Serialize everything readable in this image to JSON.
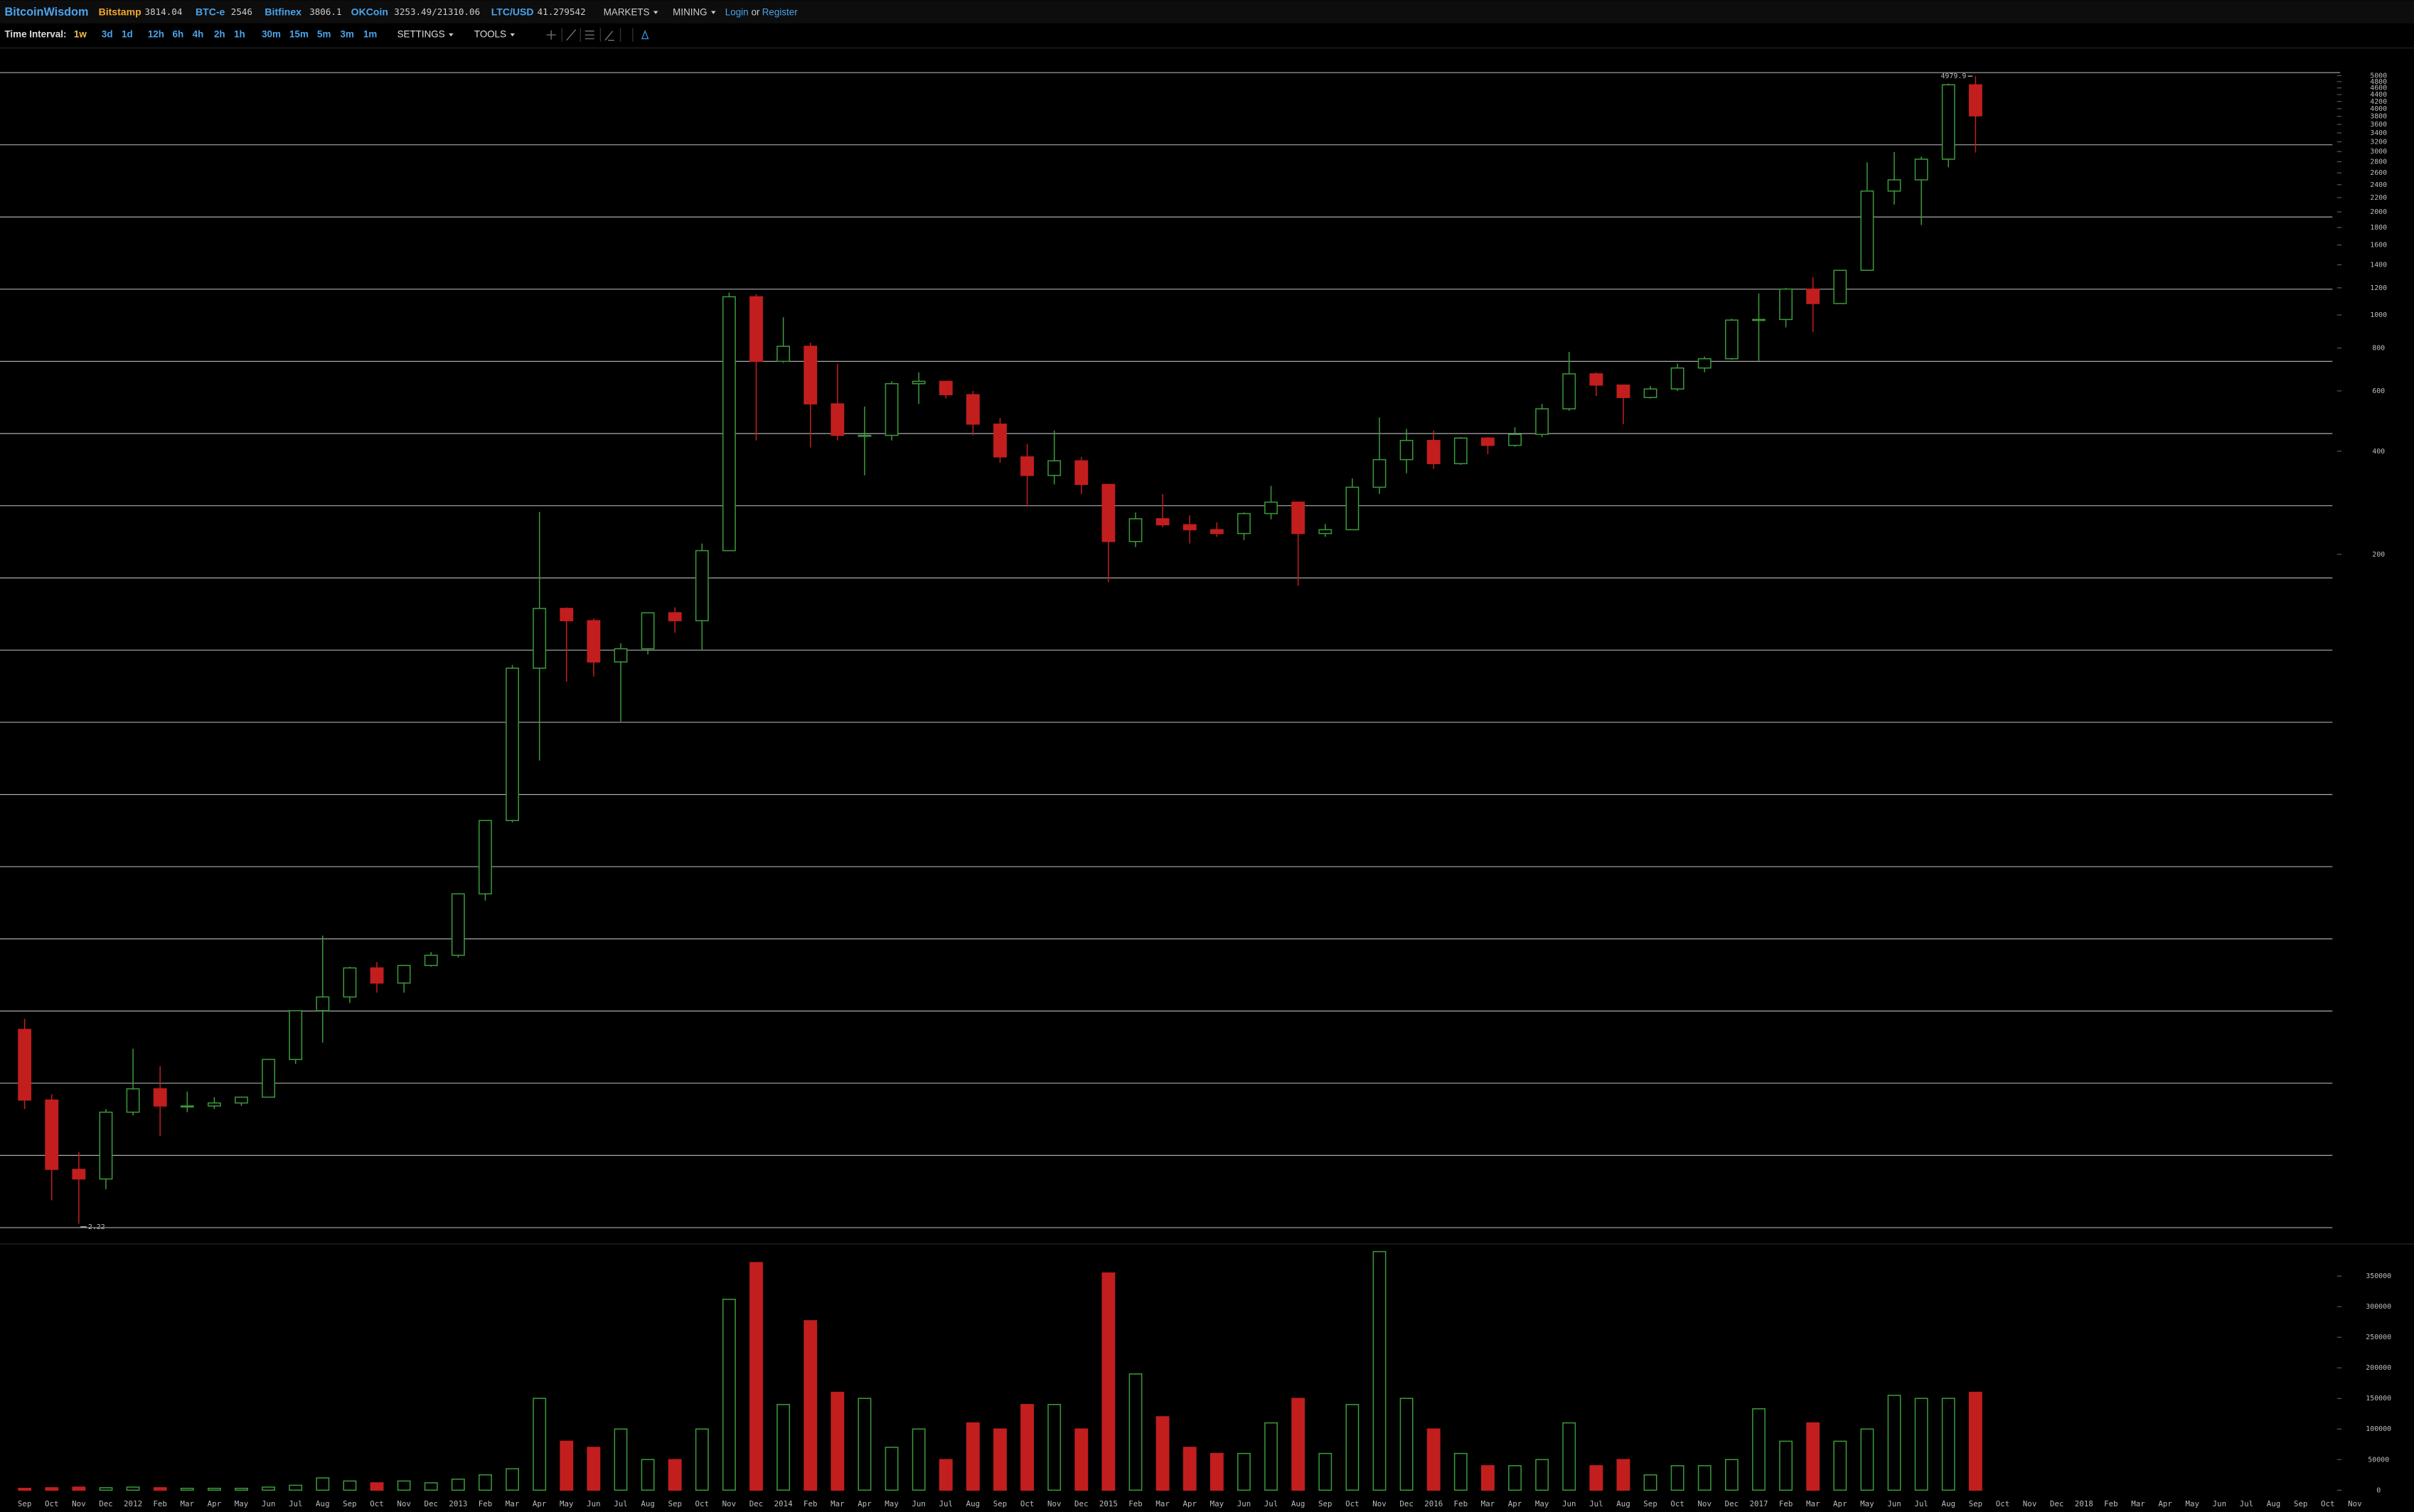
{
  "header": {
    "brand": "BitcoinWisdom",
    "tickers": [
      {
        "exchange": "Bitstamp",
        "price": "3814.04"
      },
      {
        "exchange": "BTC-e",
        "price": "2546"
      },
      {
        "exchange": "Bitfinex",
        "price": "3806.1"
      },
      {
        "exchange": "OKCoin",
        "price": "3253.49/21310.06"
      },
      {
        "exchange": "LTC/USD",
        "price": "41.279542"
      }
    ],
    "menus": [
      "MARKETS",
      "MINING"
    ],
    "login": "Login",
    "or": "or",
    "register": "Register"
  },
  "toolbar": {
    "label": "Time Interval:",
    "intervals": [
      "1w",
      "3d",
      "1d",
      "12h",
      "6h",
      "4h",
      "2h",
      "1h",
      "30m",
      "15m",
      "5m",
      "3m",
      "1m"
    ],
    "menus": [
      "SETTINGS",
      "TOOLS"
    ]
  },
  "chart_data": {
    "type": "candlestick",
    "log_scale": true,
    "up_color": "#3a9a3a",
    "down_color": "#c21e1e",
    "categories": [
      "Sep",
      "Oct",
      "Nov",
      "Dec",
      "2012",
      "Feb",
      "Mar",
      "Apr",
      "May",
      "Jun",
      "Jul",
      "Aug",
      "Sep",
      "Oct",
      "Nov",
      "Dec",
      "2013",
      "Feb",
      "Mar",
      "Apr",
      "May",
      "Jun",
      "Jul",
      "Aug",
      "Sep",
      "Oct",
      "Nov",
      "Dec",
      "2014",
      "Feb",
      "Mar",
      "Apr",
      "May",
      "Jun",
      "Jul",
      "Aug",
      "Sep",
      "Oct",
      "Nov",
      "Dec",
      "2015",
      "Feb",
      "Mar",
      "Apr",
      "May",
      "Jun",
      "Jul",
      "Aug",
      "Sep",
      "Oct",
      "Nov",
      "Dec",
      "2016",
      "Feb",
      "Mar",
      "Apr",
      "May",
      "Jun",
      "Jul",
      "Aug",
      "Sep",
      "Oct",
      "Nov",
      "Dec",
      "2017",
      "Feb",
      "Mar",
      "Apr",
      "May",
      "Jun",
      "Jul",
      "Aug",
      "Sep",
      "Oct",
      "Nov",
      "Dec",
      "2018",
      "Feb",
      "Mar",
      "Apr",
      "May",
      "Jun",
      "Jul",
      "Aug",
      "Sep",
      "Oct",
      "Nov"
    ],
    "open": [
      8.2,
      5.1,
      3.2,
      3.0,
      4.7,
      5.5,
      4.9,
      4.9,
      5.0,
      5.2,
      6.7,
      9.3,
      10.2,
      12.4,
      11.2,
      12.6,
      13.5,
      20.4,
      33.4,
      93,
      139,
      128,
      97,
      106,
      135,
      128,
      205,
      1130,
      732,
      810,
      550,
      445,
      445,
      630,
      640,
      585,
      480,
      385,
      340,
      375,
      320,
      218,
      254,
      244,
      236,
      230,
      263,
      284,
      230,
      236,
      314,
      378,
      430,
      368,
      437,
      416,
      448,
      532,
      673,
      624,
      574,
      608,
      700,
      745,
      966,
      970,
      1190,
      1080,
      1350,
      2300,
      2480,
      2850,
      4700,
      null,
      null,
      null,
      null,
      null,
      null,
      null,
      null,
      null,
      null,
      null,
      null,
      null,
      null
    ],
    "high": [
      8.8,
      5.3,
      3.6,
      4.8,
      7.2,
      6.4,
      5.4,
      5.2,
      5.2,
      6.7,
      9.3,
      15.4,
      12.5,
      12.9,
      12.6,
      13.8,
      20.5,
      33.5,
      95,
      266,
      140,
      130,
      110,
      135,
      140,
      215,
      1163,
      1150,
      985,
      830,
      720,
      540,
      640,
      680,
      640,
      600,
      500,
      420,
      460,
      385,
      320,
      265,
      300,
      260,
      248,
      265,
      317,
      285,
      245,
      333,
      502,
      465,
      460,
      440,
      440,
      470,
      550,
      780,
      680,
      624,
      620,
      720,
      756,
      975,
      1155,
      1200,
      1290,
      1350,
      2790,
      2990,
      2900,
      4740,
      4979.9,
      null,
      null,
      null,
      null,
      null,
      null,
      null,
      null,
      null,
      null,
      null,
      null,
      null,
      null
    ],
    "low": [
      4.8,
      2.6,
      2.22,
      2.8,
      4.6,
      4.0,
      4.7,
      4.8,
      4.9,
      5.2,
      6.5,
      7.5,
      9.8,
      10.5,
      10.5,
      12.5,
      13.3,
      19.5,
      33,
      50,
      85,
      88,
      65,
      102,
      118,
      105,
      205,
      430,
      725,
      410,
      430,
      340,
      430,
      550,
      570,
      445,
      370,
      275,
      320,
      300,
      166,
      210,
      240,
      215,
      225,
      220,
      253,
      162,
      225,
      235,
      300,
      345,
      355,
      365,
      392,
      412,
      440,
      525,
      580,
      480,
      570,
      600,
      680,
      740,
      735,
      920,
      890,
      1080,
      1350,
      2100,
      1830,
      2700,
      2980,
      null,
      null,
      null,
      null,
      null,
      null,
      null,
      null,
      null,
      null,
      null,
      null,
      null,
      null
    ],
    "close": [
      5.1,
      3.2,
      3.0,
      4.7,
      5.5,
      4.9,
      4.9,
      5.0,
      5.2,
      6.7,
      9.3,
      10.2,
      12.4,
      11.2,
      12.6,
      13.5,
      20.4,
      33.4,
      93,
      139,
      128,
      97,
      106,
      135,
      128,
      205,
      1130,
      732,
      810,
      550,
      445,
      445,
      630,
      640,
      585,
      480,
      385,
      340,
      375,
      320,
      218,
      254,
      244,
      236,
      230,
      263,
      284,
      230,
      236,
      314,
      378,
      430,
      368,
      437,
      416,
      448,
      532,
      673,
      624,
      574,
      608,
      700,
      745,
      966,
      970,
      1190,
      1080,
      1350,
      2300,
      2480,
      2850,
      4700,
      3814.04,
      null,
      null,
      null,
      null,
      null,
      null,
      null,
      null,
      null,
      null,
      null,
      null,
      null,
      null
    ],
    "volume": [
      3000,
      4000,
      5000,
      4000,
      5000,
      4000,
      3000,
      3000,
      3000,
      5000,
      8000,
      20000,
      15000,
      12000,
      15000,
      12000,
      18000,
      25000,
      35000,
      150000,
      80000,
      70000,
      100000,
      50000,
      50000,
      100000,
      312000,
      372000,
      140000,
      277000,
      160000,
      150000,
      70000,
      100000,
      50000,
      110000,
      100000,
      140000,
      140000,
      100000,
      355000,
      190000,
      120000,
      70000,
      60000,
      60000,
      110000,
      150000,
      60000,
      140000,
      390000,
      150000,
      100000,
      60000,
      40000,
      40000,
      50000,
      110000,
      40000,
      50000,
      25000,
      40000,
      40000,
      50000,
      133000,
      80000,
      110000,
      80000,
      100000,
      155000,
      150000,
      150000,
      160000,
      null,
      null,
      null,
      null,
      null,
      null,
      null,
      null,
      null,
      null,
      null,
      null,
      null,
      null
    ],
    "ylim": [
      2.15,
      5100
    ],
    "yticks": [
      5000,
      4800,
      4600,
      4400,
      4200,
      4000,
      3800,
      3600,
      3400,
      3200,
      3000,
      2800,
      2600,
      2400,
      2200,
      2000,
      1800,
      1600,
      1400,
      1200,
      1000,
      800,
      600,
      400,
      200
    ],
    "y2lim": [
      0,
      395000
    ],
    "y2ticks": [
      350000,
      300000,
      250000,
      200000,
      150000,
      100000,
      50000,
      0
    ],
    "max_label": 4979.9,
    "min_label": 2.22
  }
}
